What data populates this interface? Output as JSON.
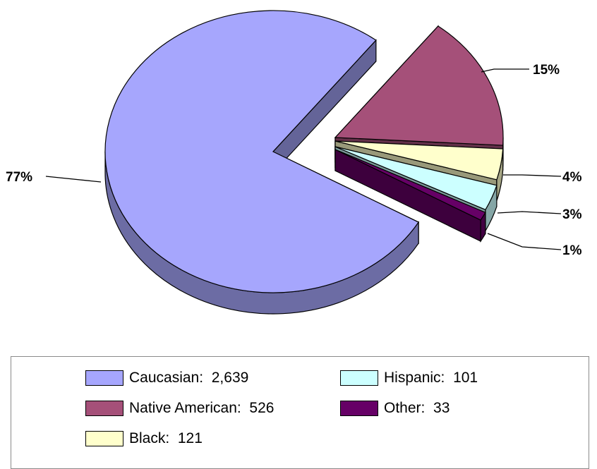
{
  "chart_data": {
    "type": "pie",
    "slices": [
      {
        "label": "Caucasian",
        "value": 2639,
        "display": "2,639",
        "percent_label": "77%",
        "color": "#a6a6fd"
      },
      {
        "label": "Native American",
        "value": 526,
        "display": "526",
        "percent_label": "15%",
        "color": "#a55079"
      },
      {
        "label": "Black",
        "value": 121,
        "display": "121",
        "percent_label": "4%",
        "color": "#ffffcc"
      },
      {
        "label": "Hispanic",
        "value": 101,
        "display": "101",
        "percent_label": "3%",
        "color": "#ccffff"
      },
      {
        "label": "Other",
        "value": 33,
        "display": "33",
        "percent_label": "1%",
        "color": "#660066"
      }
    ],
    "legend_placement": "bottom"
  }
}
